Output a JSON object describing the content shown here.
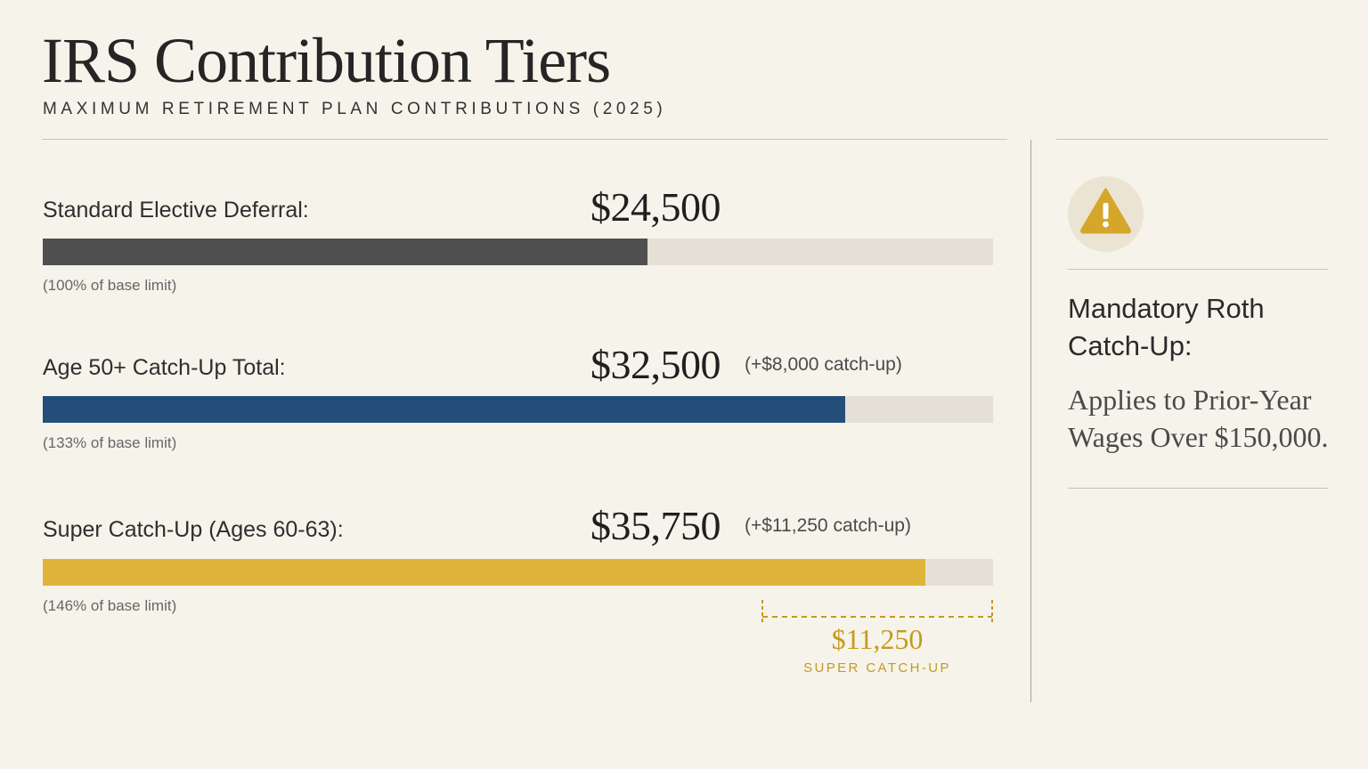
{
  "header": {
    "title": "IRS Contribution Tiers",
    "subtitle": "MAXIMUM RETIREMENT PLAN CONTRIBUTIONS (2025)"
  },
  "chart_data": {
    "type": "bar",
    "orientation": "horizontal",
    "track_max": 38500,
    "tiers": [
      {
        "label": "Standard Elective Deferral:",
        "value": 24500,
        "value_text": "$24,500",
        "extra": "",
        "note": "(100% of base limit)",
        "color": "#4f4f4f"
      },
      {
        "label": "Age 50+ Catch-Up Total:",
        "value": 32500,
        "value_text": "$32,500",
        "extra": "(+$8,000 catch-up)",
        "note": "(133% of base limit)",
        "color": "#234e7a"
      },
      {
        "label": "Super Catch-Up (Ages 60-63):",
        "value": 35750,
        "value_text": "$35,750",
        "extra": "(+$11,250 catch-up)",
        "note": "(146% of base limit)",
        "color": "#dfb43a"
      }
    ],
    "annotation": {
      "value": "$11,250",
      "label": "SUPER CATCH-UP",
      "color": "#c59a1f"
    }
  },
  "sidebar": {
    "icon": "warning-icon",
    "heading": "Mandatory Roth Catch-Up:",
    "body": "Applies to Prior-Year Wages Over $150,000."
  }
}
